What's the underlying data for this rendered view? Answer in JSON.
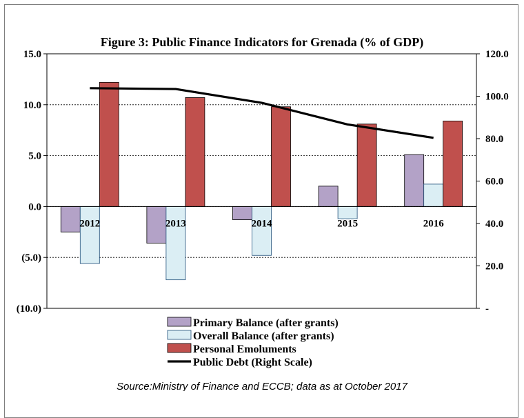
{
  "chart_data": {
    "type": "bar",
    "title": "Figure 3: Public Finance Indicators for Grenada (% of GDP)",
    "source": "Source:Ministry of Finance and ECCB; data as at October 2017",
    "categories": [
      "2012",
      "2013",
      "2014",
      "2015",
      "2016"
    ],
    "left_axis": {
      "ticks": [
        15,
        10,
        5,
        0,
        -5,
        -10
      ],
      "tick_labels": [
        "15.0",
        "10.0",
        "5.0",
        "0.0",
        "(5.0)",
        "(10.0)"
      ],
      "ylim": [
        -10,
        15
      ]
    },
    "right_axis": {
      "ticks": [
        120,
        100,
        80,
        60,
        40,
        20,
        0
      ],
      "tick_labels": [
        "120.0",
        "100.0",
        "80.0",
        "60.0",
        "40.0",
        "20.0",
        "-"
      ],
      "ylim": [
        0,
        120
      ]
    },
    "grid": "horizontal dashed",
    "legend_position": "bottom",
    "series": [
      {
        "name": "Primary Balance (after grants)",
        "type": "bar",
        "axis": "left",
        "color": "#b3a2c7",
        "values": [
          -2.5,
          -3.6,
          -1.3,
          2.0,
          5.1
        ]
      },
      {
        "name": "Overall Balance (after grants)",
        "type": "bar",
        "axis": "left",
        "color": "#dbeef4",
        "values": [
          -5.6,
          -7.2,
          -4.8,
          -1.2,
          2.2
        ]
      },
      {
        "name": "Personal Emoluments",
        "type": "bar",
        "axis": "left",
        "color": "#c0504d",
        "values": [
          12.2,
          10.7,
          9.8,
          8.1,
          8.4
        ]
      },
      {
        "name": "Public Debt (Right Scale)",
        "type": "line",
        "axis": "right",
        "color": "#000000",
        "values": [
          103.8,
          103.4,
          96.9,
          86.7,
          80.4
        ]
      }
    ]
  }
}
